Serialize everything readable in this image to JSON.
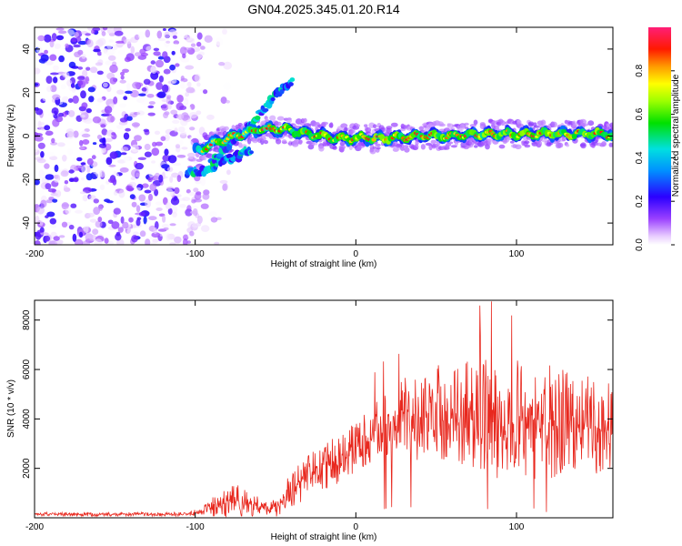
{
  "title": "GN04.2025.345.01.20.R14",
  "colors": {
    "snr_line": "#e8281e",
    "axis": "#000000"
  },
  "chart_data": [
    {
      "type": "heatmap",
      "xlabel": "Height of straight line (km)",
      "ylabel": "Frequency (Hz)",
      "xlim": [
        -200,
        160
      ],
      "ylim": [
        -50,
        50
      ],
      "xticks": [
        "-200",
        "-100",
        "0",
        "100"
      ],
      "yticks": [
        "-40",
        "-20",
        "0",
        "20",
        "40"
      ],
      "colorbar": {
        "label": "Normalized spectral amplitude",
        "range": [
          0,
          1
        ],
        "ticks": [
          "0.0",
          "0.2",
          "0.4",
          "0.6",
          "0.8"
        ],
        "colormap": "rainbow (violet-blue-cyan-green-yellow-red-magenta)"
      },
      "features": [
        {
          "name": "noise",
          "x_range": [
            -200,
            -97
          ],
          "freq_range": [
            -50,
            50
          ],
          "amplitude": "0.0-0.25"
        },
        {
          "name": "main_signal",
          "x": [
            -100,
            -90,
            -80,
            -70,
            -60,
            -50,
            -45,
            -30,
            -10,
            0,
            20,
            40,
            60,
            80,
            100,
            120,
            140,
            160
          ],
          "freq": [
            -7,
            -4,
            -1,
            1,
            3,
            3,
            3,
            1,
            -1,
            -1,
            -1,
            0,
            0,
            1,
            1,
            1,
            1,
            1
          ],
          "amplitude": "0.3-0.95"
        },
        {
          "name": "rising_branch",
          "x": [
            -90,
            -80,
            -70,
            -60,
            -52,
            -45,
            -39
          ],
          "freq": [
            -12,
            -5,
            2,
            10,
            17,
            22,
            26
          ],
          "amplitude": "0.2-0.6"
        },
        {
          "name": "lower_branch",
          "x": [
            -105,
            -95,
            -85,
            -75,
            -65
          ],
          "freq": [
            -17,
            -16,
            -12,
            -10,
            -6
          ],
          "amplitude": "0.2-0.4"
        }
      ]
    },
    {
      "type": "line",
      "xlabel": "Height of straight line (km)",
      "ylabel": "SNR (10 * v/v)",
      "xlim": [
        -200,
        160
      ],
      "ylim": [
        0,
        8800
      ],
      "xticks": [
        "-200",
        "-100",
        "0",
        "100"
      ],
      "yticks": [
        "2000",
        "4000",
        "6000",
        "8000"
      ],
      "series": [
        {
          "x": [
            -200,
            -180,
            -160,
            -140,
            -120,
            -105,
            -100,
            -95,
            -90,
            -85,
            -80,
            -75,
            -70,
            -65,
            -60,
            -55,
            -50,
            -45,
            -40,
            -35,
            -30,
            -25,
            -20,
            -15,
            -10,
            -5,
            0,
            5,
            10,
            15,
            20,
            25,
            30,
            35,
            40,
            45,
            50,
            55,
            60,
            65,
            70,
            75,
            80,
            85,
            90,
            95,
            100,
            105,
            110,
            115,
            120,
            125,
            130,
            135,
            140,
            145,
            150,
            155,
            160
          ],
          "y": [
            150,
            140,
            130,
            150,
            140,
            150,
            200,
            300,
            450,
            550,
            600,
            700,
            650,
            550,
            450,
            350,
            400,
            800,
            1100,
            1400,
            1700,
            1850,
            2000,
            2200,
            2400,
            2600,
            2800,
            3100,
            3400,
            3650,
            3850,
            4000,
            4050,
            4100,
            4000,
            4100,
            4200,
            4150,
            4100,
            4200,
            4300,
            4200,
            4100,
            4200,
            4000,
            4100,
            4100,
            4000,
            3900,
            4000,
            3900,
            3800,
            3900,
            3700,
            3800,
            3600,
            3700,
            3500,
            3400
          ],
          "spread": [
            80,
            80,
            80,
            80,
            80,
            80,
            150,
            200,
            400,
            500,
            700,
            700,
            600,
            500,
            350,
            300,
            400,
            600,
            700,
            800,
            900,
            900,
            900,
            1000,
            1000,
            1000,
            1100,
            1100,
            1200,
            1300,
            1400,
            1500,
            1600,
            1700,
            1800,
            1900,
            2000,
            2000,
            2100,
            2200,
            2300,
            2300,
            2400,
            2500,
            2500,
            2500,
            2500,
            2500,
            2400,
            2400,
            2300,
            2300,
            2200,
            2200,
            2100,
            2100,
            2000,
            2000,
            2000
          ]
        }
      ]
    }
  ]
}
